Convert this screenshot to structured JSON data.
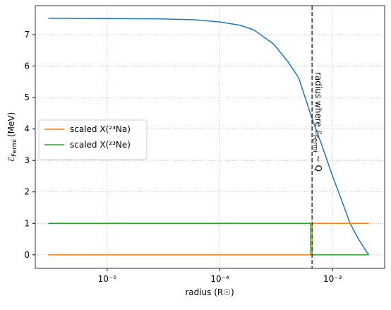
{
  "chart_data": {
    "type": "line",
    "xlabel": "radius (R☉)",
    "ylabel": {
      "symbol": "ℰ",
      "subscript": "Fermi",
      "unit": "(MeV)"
    },
    "xscale": "log",
    "xlim": [
      2.3e-06,
      0.0029
    ],
    "ylim": [
      -0.43,
      7.92
    ],
    "xticks": [
      {
        "value": 1e-05,
        "label": "10⁻⁵"
      },
      {
        "value": 0.0001,
        "label": "10⁻⁴"
      },
      {
        "value": 0.001,
        "label": "10⁻³"
      }
    ],
    "yticks": [
      0,
      1,
      2,
      3,
      4,
      5,
      6,
      7
    ],
    "grid": true,
    "legend": "left",
    "series": [
      {
        "name": null,
        "color": "#1f77b4",
        "x": [
          3e-06,
          1e-05,
          3e-05,
          6e-05,
          0.0001,
          0.00015,
          0.0002,
          0.0003,
          0.0004,
          0.0005,
          0.000658,
          0.0008,
          0.001,
          0.0012,
          0.00143,
          0.0017,
          0.002,
          0.0021
        ],
        "values": [
          7.52,
          7.51,
          7.5,
          7.47,
          7.4,
          7.3,
          7.15,
          6.7,
          6.15,
          5.63,
          4.33,
          3.5,
          2.5,
          1.75,
          1.0,
          0.5,
          0.1,
          0.0
        ]
      },
      {
        "name": "scaled X(²³Na)",
        "color": "#ff7f0e",
        "x": [
          3e-06,
          0.000658,
          0.000658,
          0.0021
        ],
        "values": [
          0,
          0,
          1,
          1
        ]
      },
      {
        "name": "scaled X(²³Ne)",
        "color": "#2ca02c",
        "x": [
          3e-06,
          0.00064,
          0.00064,
          0.0021
        ],
        "values": [
          1,
          1,
          0,
          0
        ]
      }
    ],
    "vline": {
      "x": 0.000658,
      "color": "#333333",
      "annotation": {
        "before": "radius where ℰ",
        "subscript": "Fermi",
        "after": " ∼ Q"
      }
    }
  }
}
